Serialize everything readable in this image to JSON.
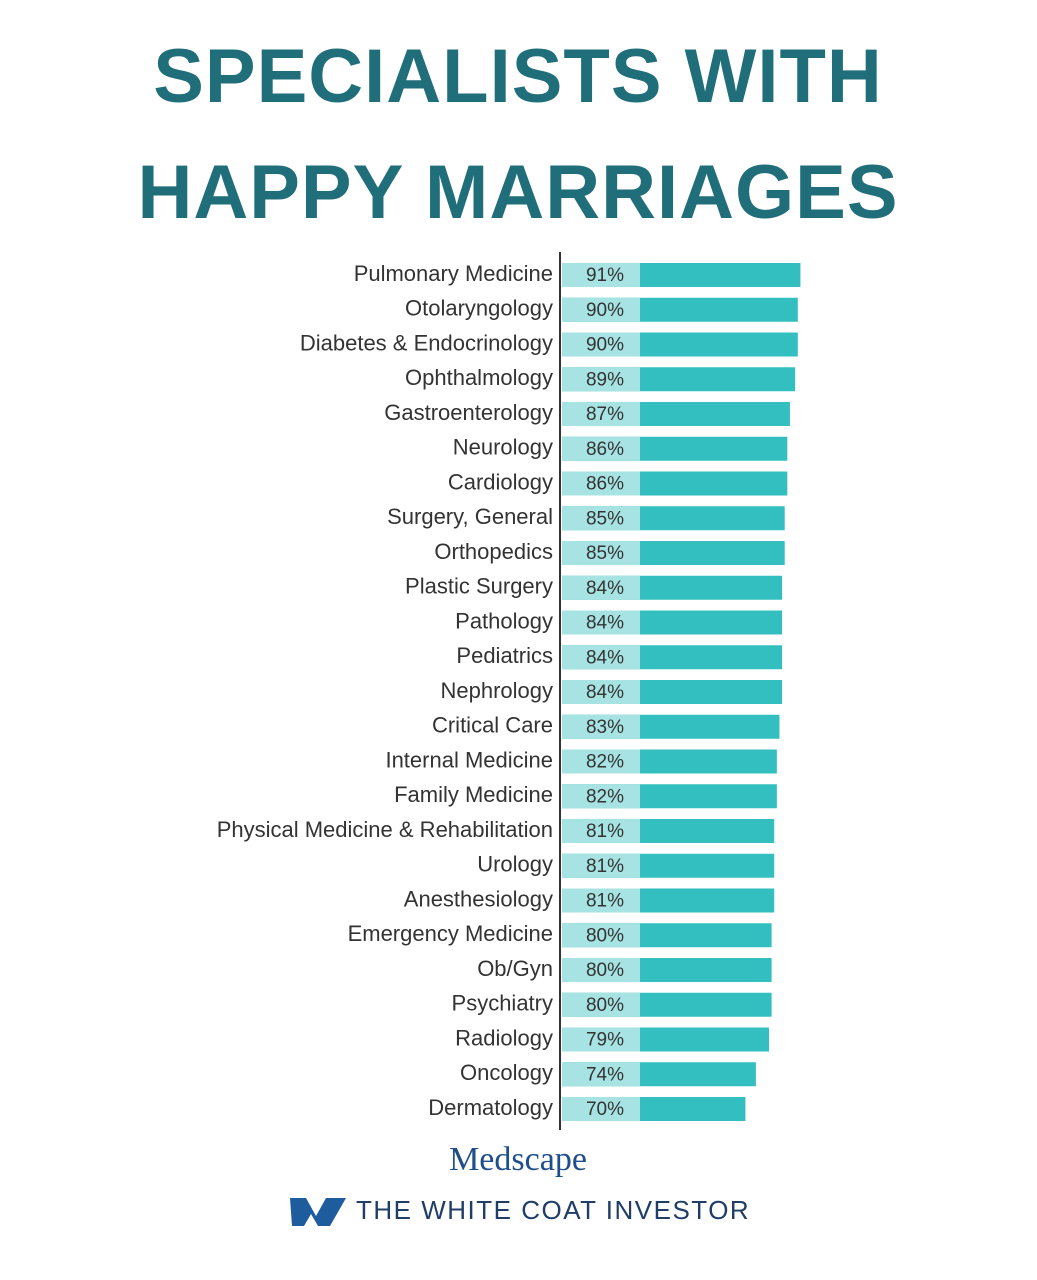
{
  "chart_data": {
    "type": "hbar",
    "title": [
      "SPECIALISTS WITH",
      "HAPPY MARRIAGES"
    ],
    "categories": [
      "Pulmonary Medicine",
      "Otolaryngology",
      "Diabetes & Endocrinology",
      "Ophthalmology",
      "Gastroenterology",
      "Neurology",
      "Cardiology",
      "Surgery, General",
      "Orthopedics",
      "Plastic Surgery",
      "Pathology",
      "Pediatrics",
      "Nephrology",
      "Critical Care",
      "Internal Medicine",
      "Family Medicine",
      "Physical Medicine & Rehabilitation",
      "Urology",
      "Anesthesiology",
      "Emergency Medicine",
      "Ob/Gyn",
      "Psychiatry",
      "Radiology",
      "Oncology",
      "Dermatology"
    ],
    "values": [
      91,
      90,
      90,
      89,
      87,
      86,
      86,
      85,
      85,
      84,
      84,
      84,
      84,
      83,
      82,
      82,
      81,
      81,
      81,
      80,
      80,
      80,
      79,
      74,
      70
    ],
    "value_labels": [
      "91%",
      "90%",
      "90%",
      "89%",
      "87%",
      "86%",
      "86%",
      "85%",
      "85%",
      "84%",
      "84%",
      "84%",
      "84%",
      "83%",
      "82%",
      "82%",
      "81%",
      "81%",
      "81%",
      "80%",
      "80%",
      "80%",
      "79%",
      "74%",
      "70%"
    ],
    "color": "#33bfbf",
    "xlim": [
      0,
      100
    ],
    "sources": [
      "Medscape",
      "THE WHITE COAT INVESTOR"
    ]
  }
}
